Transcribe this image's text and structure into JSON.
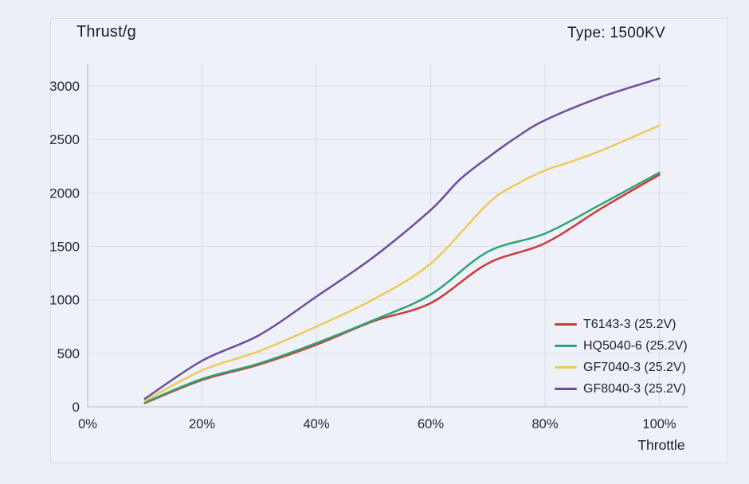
{
  "header": {
    "title": "Thrust/g",
    "type_label": "Type: 1500KV"
  },
  "chart_data": {
    "type": "line",
    "title": "Thrust/g",
    "subtitle": "Type: 1500KV",
    "xlabel": "Throttle",
    "ylabel": "Thrust/g",
    "xlim": [
      0,
      105
    ],
    "ylim": [
      0,
      3210
    ],
    "grid": true,
    "legend_position": "bottom-right",
    "x_ticks": [
      0,
      20,
      40,
      60,
      80,
      100
    ],
    "x_tick_labels": [
      "0%",
      "20%",
      "40%",
      "60%",
      "80%",
      "100%"
    ],
    "y_ticks": [
      0,
      500,
      1000,
      1500,
      2000,
      2500,
      3000
    ],
    "series": [
      {
        "name": "T6143-3 (25.2V)",
        "color": "#cd3a3a",
        "points": [
          [
            10,
            35
          ],
          [
            20,
            250
          ],
          [
            30,
            395
          ],
          [
            40,
            580
          ],
          [
            50,
            800
          ],
          [
            60,
            970
          ],
          [
            70,
            1340
          ],
          [
            80,
            1530
          ],
          [
            90,
            1860
          ],
          [
            100,
            2170
          ]
        ]
      },
      {
        "name": "HQ5040-6 (25.2V)",
        "color": "#2ea474",
        "points": [
          [
            10,
            40
          ],
          [
            20,
            260
          ],
          [
            30,
            405
          ],
          [
            40,
            595
          ],
          [
            50,
            810
          ],
          [
            60,
            1050
          ],
          [
            70,
            1450
          ],
          [
            80,
            1620
          ],
          [
            90,
            1900
          ],
          [
            100,
            2190
          ]
        ]
      },
      {
        "name": "GF7040-3 (25.2V)",
        "color": "#edca5a",
        "points": [
          [
            10,
            55
          ],
          [
            20,
            340
          ],
          [
            30,
            520
          ],
          [
            40,
            750
          ],
          [
            50,
            1005
          ],
          [
            60,
            1340
          ],
          [
            70,
            1900
          ],
          [
            75,
            2080
          ],
          [
            80,
            2210
          ],
          [
            85,
            2300
          ],
          [
            90,
            2400
          ],
          [
            100,
            2630
          ]
        ]
      },
      {
        "name": "GF8040-3 (25.2V)",
        "color": "#6f4d9d",
        "points": [
          [
            10,
            75
          ],
          [
            20,
            430
          ],
          [
            30,
            670
          ],
          [
            40,
            1030
          ],
          [
            50,
            1400
          ],
          [
            60,
            1840
          ],
          [
            65,
            2120
          ],
          [
            70,
            2330
          ],
          [
            75,
            2520
          ],
          [
            80,
            2680
          ],
          [
            90,
            2900
          ],
          [
            100,
            3070
          ]
        ]
      }
    ]
  }
}
